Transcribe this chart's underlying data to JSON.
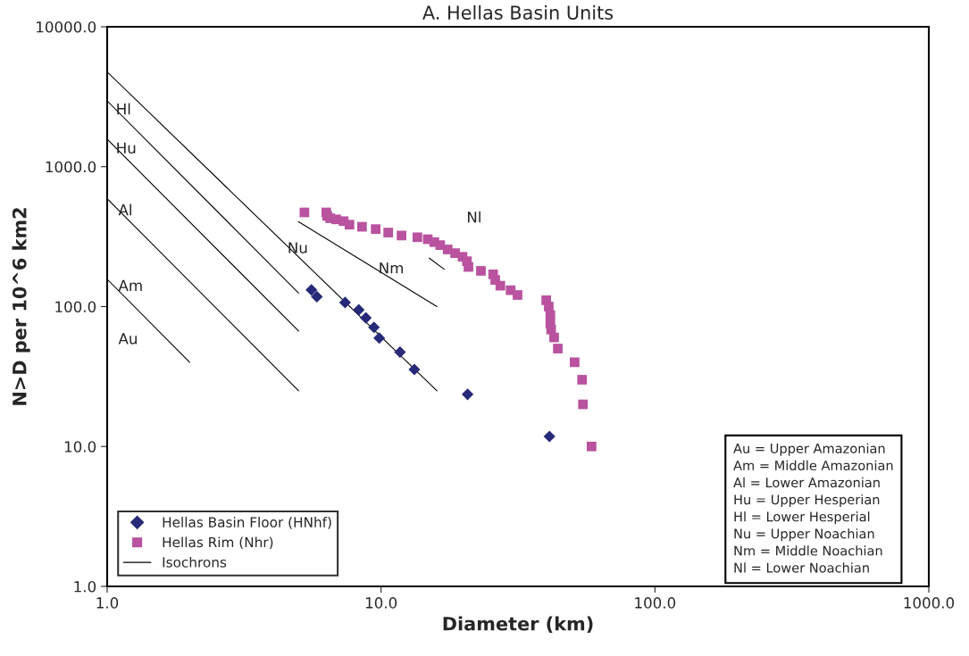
{
  "chart_data": {
    "type": "scatter",
    "title": "A. Hellas Basin Units",
    "xlabel": "Diameter (km)",
    "ylabel": "N>D per 10^6 km2",
    "log": "xy",
    "grid": false,
    "legend": "bottom left",
    "xlim": [
      1,
      1000
    ],
    "xticks": [
      {
        "value": 1,
        "label": "1.0"
      },
      {
        "value": 10,
        "label": "10.0"
      },
      {
        "value": 100,
        "label": "100.0"
      },
      {
        "value": 1000,
        "label": "1000.0"
      }
    ],
    "ylim": [
      1,
      10000
    ],
    "yticks": [
      {
        "value": 1,
        "label": "1.0"
      },
      {
        "value": 10,
        "label": "10.0"
      },
      {
        "value": 100,
        "label": "100.0"
      },
      {
        "value": 1000,
        "label": "1000.0"
      },
      {
        "value": 10000,
        "label": "10000.0"
      }
    ],
    "series": [
      {
        "name": "Hellas Basin Floor (HNhf)",
        "marker": "diamond",
        "color": "#262a78",
        "x": [
          5.57,
          5.83,
          7.39,
          8.29,
          8.8,
          9.42,
          9.85,
          11.73,
          13.23,
          20.7,
          41.2
        ],
        "values": [
          131.5,
          117.7,
          107,
          94.8,
          83,
          71.1,
          59.6,
          47.3,
          35.5,
          23.6,
          11.8
        ]
      },
      {
        "name": "Hellas Rim (Nhr)",
        "marker": "square",
        "color": "#b9529f",
        "x": [
          5.25,
          6.31,
          6.36,
          6.52,
          6.86,
          7.3,
          7.67,
          8.52,
          9.56,
          10.62,
          11.88,
          13.57,
          14.81,
          15.65,
          16.44,
          17.51,
          18.64,
          19.84,
          20.59,
          20.85,
          23.16,
          25.67,
          26.12,
          27.26,
          29.73,
          31.5,
          40.1,
          40.96,
          41.5,
          41.5,
          41.8,
          42.85,
          44.2,
          50.9,
          54.2,
          54.6,
          58.7
        ],
        "values": [
          471,
          471,
          445,
          428,
          420,
          408,
          385,
          372,
          358,
          338,
          322,
          313,
          303,
          289,
          275,
          256,
          241,
          227,
          211,
          192,
          180,
          170,
          155,
          141,
          131,
          121,
          111,
          100,
          87,
          75.4,
          68.5,
          60.2,
          50.1,
          40,
          30,
          20,
          10
        ]
      },
      {
        "name": "Isochrons",
        "type": "line",
        "marker": "none",
        "line_style": "solid",
        "color": "#000000",
        "x": [
          1,
          16
        ],
        "values": [
          4760,
          25
        ]
      },
      {
        "type": "line",
        "marker": "none",
        "line_style": "solid",
        "color": "#000000",
        "x": [
          1,
          5
        ],
        "values": [
          2951,
          125
        ]
      },
      {
        "type": "line",
        "marker": "none",
        "line_style": "solid",
        "color": "#000000",
        "x": [
          1,
          5
        ],
        "values": [
          1571,
          66.8
        ]
      },
      {
        "type": "line",
        "marker": "none",
        "line_style": "solid",
        "color": "#000000",
        "x": [
          1,
          5
        ],
        "values": [
          590,
          25
        ]
      },
      {
        "type": "line",
        "marker": "none",
        "line_style": "solid",
        "color": "#000000",
        "x": [
          1,
          2
        ],
        "values": [
          157,
          40
        ]
      },
      {
        "type": "line",
        "marker": "none",
        "line_style": "solid",
        "color": "#000000",
        "x": [
          5,
          16
        ],
        "values": [
          404,
          100
        ]
      },
      {
        "type": "line",
        "marker": "none",
        "line_style": "solid",
        "color": "#000000",
        "x": [
          15,
          17
        ],
        "values": [
          222,
          185
        ]
      }
    ],
    "annotations": [
      "Hl",
      "Hu",
      "Al",
      "Am",
      "Au",
      "Nu",
      "Nm",
      "Nl",
      "Au = Upper Amazonian",
      "Am = Middle Amazonian",
      "Al = Lower Amazonian",
      "Hu = Upper Hesperian",
      "Hl = Lower Hesperial",
      "Nu = Upper Noachian",
      "Nm = Middle Noachian",
      "Nl = Lower Noachian"
    ]
  }
}
